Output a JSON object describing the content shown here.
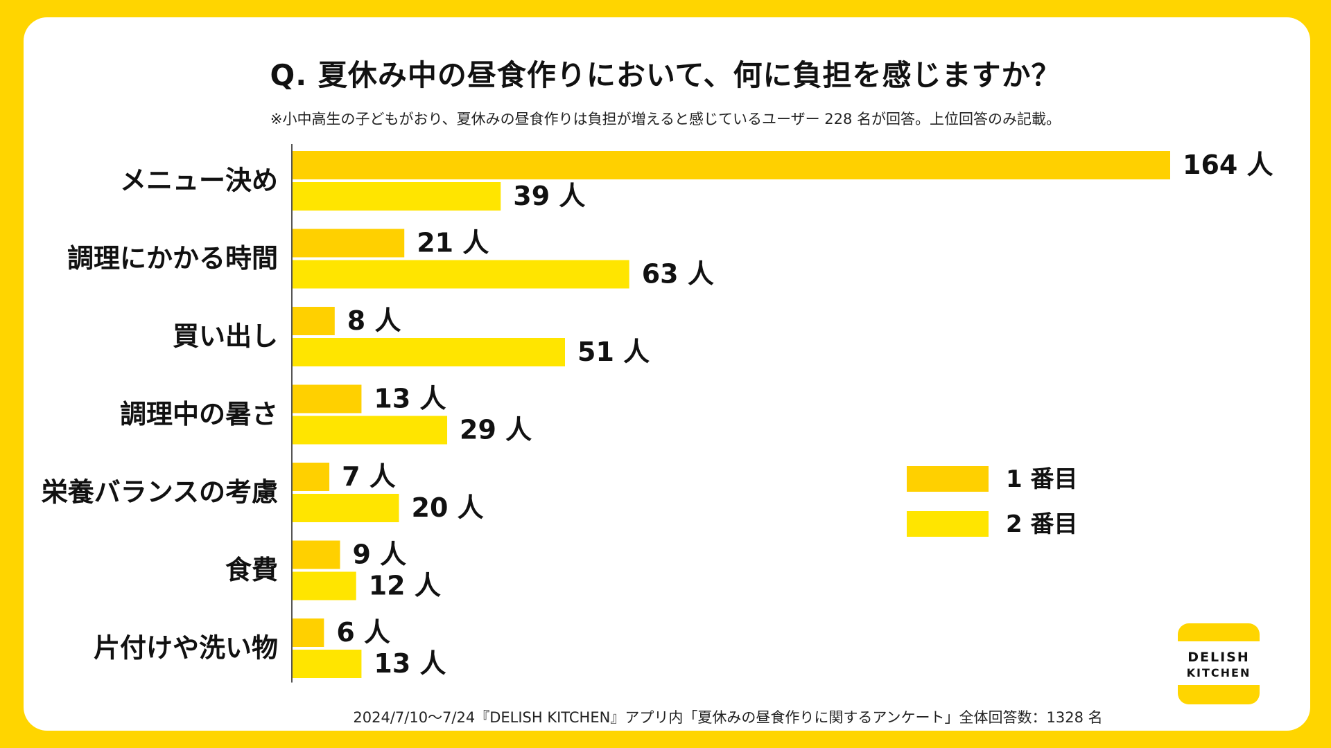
{
  "colors": {
    "background": "#FFD500",
    "card": "#FFFFFF",
    "series_first": "#FFD000",
    "series_second": "#FFE500",
    "axis": "#555555",
    "text": "#111111"
  },
  "title": "Q. 夏休み中の昼食作りにおいて、何に負担を感じますか？",
  "subtitle": "※小中高生の子どもがおり、夏休みの昼食作りは負担が増えると感じているユーザー 228 名が回答。上位回答のみ記載。",
  "footer": "2024/7/10〜7/24『DELISH KITCHEN』アプリ内「夏休みの昼食作りに関するアンケート」全体回答数：1328 名",
  "logo": {
    "line1": "DELISH",
    "line2": "KITCHEN"
  },
  "chart_data": {
    "type": "bar",
    "orientation": "horizontal",
    "categories": [
      "メニュー決め",
      "調理にかかる時間",
      "買い出し",
      "調理中の暑さ",
      "栄養バランスの考慮",
      "食費",
      "片付けや洗い物"
    ],
    "series": [
      {
        "name": "1 番目",
        "values": [
          164,
          21,
          8,
          13,
          7,
          9,
          6
        ],
        "labels": [
          "164 人",
          "21 人",
          "8 人",
          "13 人",
          "7 人",
          "9 人",
          "6 人"
        ]
      },
      {
        "name": "2 番目",
        "values": [
          39,
          63,
          51,
          29,
          20,
          12,
          13
        ],
        "labels": [
          "39 人",
          "63 人",
          "51 人",
          "29 人",
          "20 人",
          "12 人",
          "13 人"
        ]
      }
    ],
    "unit": "人",
    "xlim": [
      0,
      164
    ],
    "grid": false,
    "legend": {
      "position": "right",
      "entries": [
        "1 番目",
        "2 番目"
      ]
    }
  }
}
